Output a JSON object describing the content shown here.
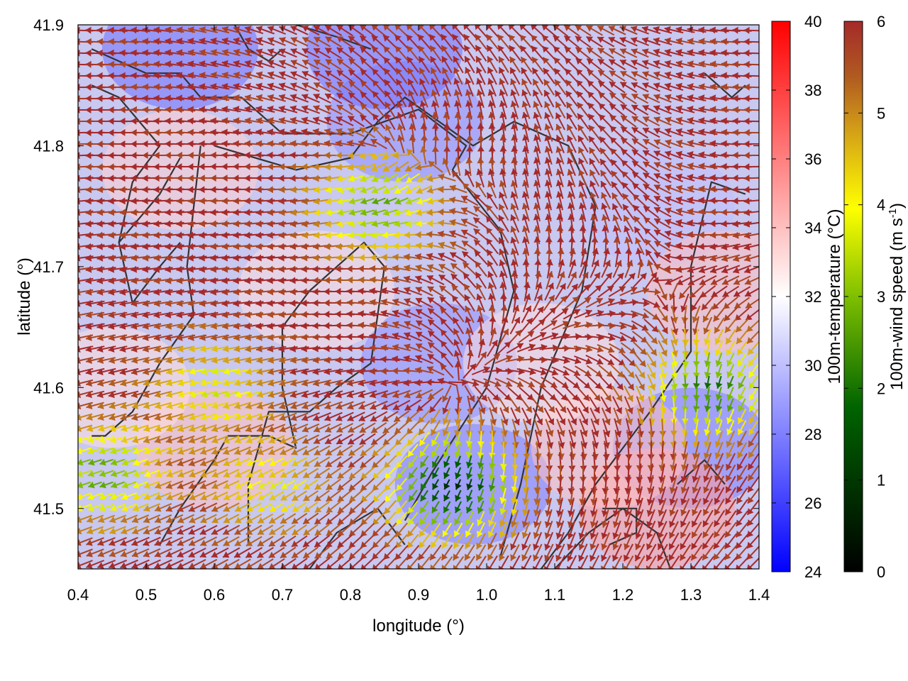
{
  "chart_data": {
    "type": "heatmap",
    "title": "",
    "xlabel": "longitude (°)",
    "ylabel": "latitude (°)",
    "xlim": [
      0.4,
      1.4
    ],
    "ylim": [
      41.45,
      41.9
    ],
    "x_ticks": [
      "0.4",
      "0.5",
      "0.6",
      "0.7",
      "0.8",
      "0.9",
      "1.0",
      "1.1",
      "1.2",
      "1.3",
      "1.4"
    ],
    "y_ticks": [
      "41.5",
      "41.6",
      "41.7",
      "41.8",
      "41.9"
    ],
    "grid": false,
    "temperature_colorbar": {
      "label": "100m-temperature (°C)",
      "range": [
        24,
        40
      ],
      "ticks": [
        "24",
        "26",
        "28",
        "30",
        "32",
        "34",
        "36",
        "38",
        "40"
      ],
      "colors": [
        "#0000ff",
        "#ffffff",
        "#ff0000"
      ]
    },
    "wind_colorbar": {
      "label_main": "100m-wind speed (m s",
      "label_sup": "-1",
      "label_end": ")",
      "range": [
        0,
        6
      ],
      "ticks": [
        "0",
        "1",
        "2",
        "3",
        "4",
        "5",
        "6"
      ],
      "colors": [
        "#000000",
        "#006400",
        "#7fbf00",
        "#ffff00",
        "#d4a017",
        "#b05a20",
        "#a52a2a"
      ]
    },
    "background_temperature_blobs": [
      {
        "lon": 0.55,
        "lat": 41.78,
        "t": 33.5
      },
      {
        "lon": 0.6,
        "lat": 41.55,
        "t": 34
      },
      {
        "lon": 0.45,
        "lat": 41.6,
        "t": 33
      },
      {
        "lon": 0.93,
        "lat": 41.62,
        "t": 28.5
      },
      {
        "lon": 0.98,
        "lat": 41.52,
        "t": 28
      },
      {
        "lon": 0.88,
        "lat": 41.82,
        "t": 28.5
      },
      {
        "lon": 0.55,
        "lat": 41.88,
        "t": 27.5
      },
      {
        "lon": 0.85,
        "lat": 41.88,
        "t": 27.5
      },
      {
        "lon": 1.25,
        "lat": 41.75,
        "t": 30
      },
      {
        "lon": 1.3,
        "lat": 41.55,
        "t": 28
      },
      {
        "lon": 1.25,
        "lat": 41.5,
        "t": 35
      },
      {
        "lon": 1.18,
        "lat": 41.55,
        "t": 34
      },
      {
        "lon": 1.35,
        "lat": 41.68,
        "t": 34
      },
      {
        "lon": 0.75,
        "lat": 41.68,
        "t": 33
      },
      {
        "lon": 1.08,
        "lat": 41.62,
        "t": 33
      }
    ],
    "wind_sources": [
      {
        "lon": 0.94,
        "lat": 41.6,
        "strength": 1
      },
      {
        "lon": 0.84,
        "lat": 41.8,
        "strength": 0.6
      }
    ],
    "calm_zones": [
      {
        "lon": 0.95,
        "lat": 41.52,
        "speed": 1.0
      },
      {
        "lon": 0.84,
        "lat": 41.75,
        "speed": 2.8
      },
      {
        "lon": 0.44,
        "lat": 41.53,
        "speed": 2.8
      },
      {
        "lon": 1.33,
        "lat": 41.6,
        "speed": 2.2
      },
      {
        "lon": 0.68,
        "lat": 41.52,
        "speed": 4.0
      },
      {
        "lon": 0.6,
        "lat": 41.6,
        "speed": 3.8
      }
    ],
    "prevailing_wind_speed": 6,
    "contours": [
      [
        [
          0.42,
          41.88
        ],
        [
          0.5,
          41.86
        ],
        [
          0.55,
          41.86
        ],
        [
          0.58,
          41.84
        ],
        [
          0.64,
          41.84
        ],
        [
          0.7,
          41.81
        ],
        [
          0.8,
          41.81
        ],
        [
          0.9,
          41.83
        ],
        [
          0.97,
          41.8
        ],
        [
          0.95,
          41.78
        ],
        [
          1.02,
          41.73
        ],
        [
          1.04,
          41.68
        ],
        [
          1.0,
          41.6
        ],
        [
          0.92,
          41.53
        ],
        [
          0.88,
          41.49
        ]
      ],
      [
        [
          0.42,
          41.85
        ],
        [
          0.46,
          41.84
        ],
        [
          0.52,
          41.8
        ],
        [
          0.48,
          41.77
        ],
        [
          0.46,
          41.72
        ],
        [
          0.48,
          41.67
        ],
        [
          0.52,
          41.7
        ],
        [
          0.55,
          41.72
        ]
      ],
      [
        [
          0.6,
          41.8
        ],
        [
          0.72,
          41.78
        ],
        [
          0.8,
          41.79
        ],
        [
          0.84,
          41.82
        ],
        [
          0.88,
          41.84
        ],
        [
          0.93,
          41.82
        ],
        [
          0.98,
          41.8
        ],
        [
          1.04,
          41.82
        ],
        [
          1.12,
          41.8
        ],
        [
          1.16,
          41.75
        ],
        [
          1.14,
          41.68
        ],
        [
          1.08,
          41.6
        ],
        [
          1.05,
          41.52
        ],
        [
          1.02,
          41.46
        ]
      ],
      [
        [
          0.58,
          41.8
        ],
        [
          0.57,
          41.75
        ],
        [
          0.56,
          41.7
        ],
        [
          0.57,
          41.66
        ],
        [
          0.52,
          41.62
        ],
        [
          0.48,
          41.58
        ],
        [
          0.44,
          41.56
        ],
        [
          0.42,
          41.56
        ]
      ],
      [
        [
          0.52,
          41.47
        ],
        [
          0.55,
          41.5
        ],
        [
          0.6,
          41.54
        ],
        [
          0.62,
          41.56
        ],
        [
          0.68,
          41.56
        ],
        [
          0.72,
          41.55
        ],
        [
          0.7,
          41.6
        ],
        [
          0.7,
          41.65
        ],
        [
          0.74,
          41.68
        ],
        [
          0.78,
          41.7
        ],
        [
          0.82,
          41.72
        ],
        [
          0.85,
          41.7
        ],
        [
          0.83,
          41.62
        ],
        [
          0.78,
          41.6
        ],
        [
          0.74,
          41.58
        ],
        [
          0.68,
          41.58
        ],
        [
          0.65,
          41.52
        ],
        [
          0.65,
          41.47
        ]
      ],
      [
        [
          1.1,
          41.45
        ],
        [
          1.15,
          41.48
        ],
        [
          1.2,
          41.5
        ],
        [
          1.25,
          41.48
        ],
        [
          1.27,
          41.45
        ]
      ],
      [
        [
          1.38,
          41.76
        ],
        [
          1.33,
          41.77
        ],
        [
          1.3,
          41.7
        ],
        [
          1.3,
          41.63
        ],
        [
          1.24,
          41.58
        ],
        [
          1.2,
          41.55
        ],
        [
          1.16,
          41.52
        ],
        [
          1.12,
          41.48
        ],
        [
          1.08,
          41.45
        ]
      ],
      [
        [
          0.46,
          41.72
        ],
        [
          0.52,
          41.76
        ],
        [
          0.55,
          41.79
        ]
      ],
      [
        [
          0.72,
          41.9
        ],
        [
          0.78,
          41.89
        ],
        [
          0.83,
          41.88
        ]
      ],
      [
        [
          0.63,
          41.9
        ],
        [
          0.65,
          41.88
        ],
        [
          0.68,
          41.87
        ],
        [
          0.7,
          41.88
        ]
      ],
      [
        [
          1.32,
          41.86
        ],
        [
          1.36,
          41.84
        ],
        [
          1.38,
          41.85
        ]
      ],
      [
        [
          1.28,
          41.52
        ],
        [
          1.32,
          41.54
        ],
        [
          1.35,
          41.52
        ]
      ],
      [
        [
          1.17,
          41.5
        ],
        [
          1.22,
          41.5
        ],
        [
          1.22,
          41.48
        ],
        [
          1.18,
          41.47
        ]
      ],
      [
        [
          0.74,
          41.45
        ],
        [
          0.78,
          41.48
        ],
        [
          0.84,
          41.5
        ],
        [
          0.88,
          41.47
        ]
      ]
    ]
  }
}
